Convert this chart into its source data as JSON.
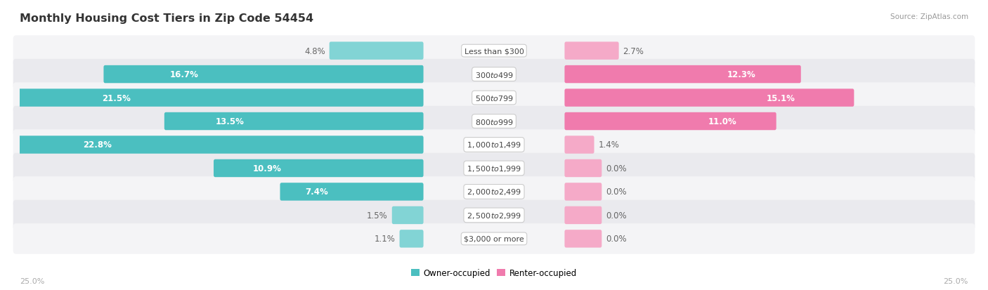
{
  "title": "Monthly Housing Cost Tiers in Zip Code 54454",
  "source": "Source: ZipAtlas.com",
  "categories": [
    "Less than $300",
    "$300 to $499",
    "$500 to $799",
    "$800 to $999",
    "$1,000 to $1,499",
    "$1,500 to $1,999",
    "$2,000 to $2,499",
    "$2,500 to $2,999",
    "$3,000 or more"
  ],
  "owner_values": [
    4.8,
    16.7,
    21.5,
    13.5,
    22.8,
    10.9,
    7.4,
    1.5,
    1.1
  ],
  "renter_values": [
    2.7,
    12.3,
    15.1,
    11.0,
    1.4,
    0.0,
    0.0,
    0.0,
    0.0
  ],
  "owner_color": "#4bbfc0",
  "renter_color": "#f07bad",
  "owner_color_light": "#82d4d5",
  "renter_color_light": "#f5aac8",
  "row_bg_odd": "#f4f4f6",
  "row_bg_even": "#eaeaee",
  "axis_limit": 25.0,
  "title_fontsize": 11.5,
  "label_fontsize": 8.5,
  "cat_fontsize": 8.0,
  "source_fontsize": 7.5,
  "legend_fontsize": 8.5,
  "footer_fontsize": 8,
  "inside_label_threshold": 6.0,
  "small_renter_stub": 1.8
}
